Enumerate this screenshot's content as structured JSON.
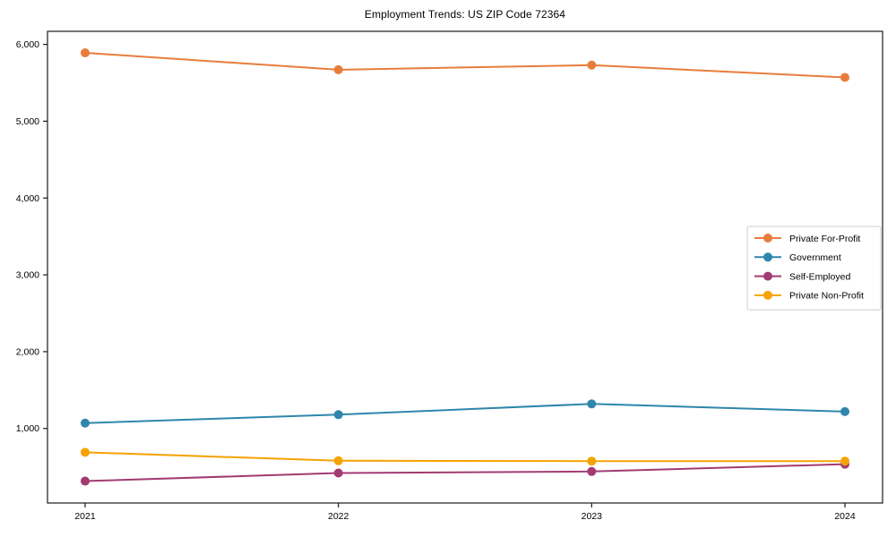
{
  "chart_data": {
    "type": "line",
    "title": "Employment Trends: US ZIP Code 72364",
    "xlabel": "",
    "ylabel": "",
    "x_tick_labels": [
      "2021",
      "2022",
      "2023",
      "2024"
    ],
    "y_ticks": [
      1000,
      2000,
      3000,
      4000,
      5000,
      6000
    ],
    "y_tick_labels": [
      "1,000",
      "2,000",
      "3,000",
      "4,000",
      "5,000",
      "6,000"
    ],
    "ylim": [
      30,
      6170
    ],
    "grid": false,
    "legend_position": "center-right",
    "axis_color": "#1a1a1a",
    "legend_border_color": "#cccccc",
    "series": [
      {
        "name": "Private For-Profit",
        "color": "#E87D3B",
        "values": [
          5890,
          5670,
          5730,
          5570
        ]
      },
      {
        "name": "Government",
        "color": "#2E86AB",
        "values": [
          1070,
          1180,
          1320,
          1220
        ]
      },
      {
        "name": "Self-Employed",
        "color": "#A23B72",
        "values": [
          315,
          420,
          440,
          535
        ]
      },
      {
        "name": "Private Non-Profit",
        "color": "#F5A302",
        "values": [
          690,
          580,
          575,
          575
        ]
      }
    ]
  }
}
